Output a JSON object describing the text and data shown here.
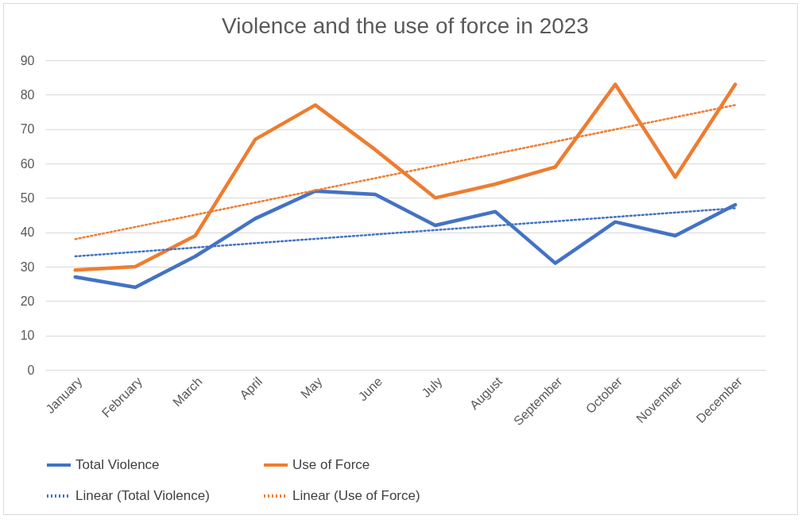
{
  "chart_data": {
    "type": "line",
    "title": "Violence and the use of force in 2023",
    "categories": [
      "January",
      "February",
      "March",
      "April",
      "May",
      "June",
      "July",
      "August",
      "September",
      "October",
      "November",
      "December"
    ],
    "series": [
      {
        "name": "Total Violence",
        "color": "#4472c4",
        "line_style": "solid",
        "values": [
          27,
          24,
          33,
          44,
          52,
          51,
          42,
          46,
          31,
          43,
          39,
          48
        ]
      },
      {
        "name": "Use of Force",
        "color": "#ed7d31",
        "line_style": "solid",
        "values": [
          29,
          30,
          39,
          67,
          77,
          64,
          50,
          54,
          59,
          83,
          56,
          83
        ]
      },
      {
        "name": "Linear (Total Violence)",
        "color": "#4472c4",
        "line_style": "dotted",
        "x": [
          "January",
          "December"
        ],
        "values": [
          33,
          47
        ]
      },
      {
        "name": "Linear (Use of Force)",
        "color": "#ed7d31",
        "line_style": "dotted",
        "x": [
          "January",
          "December"
        ],
        "values": [
          38,
          77
        ]
      }
    ],
    "ylim": [
      0,
      90
    ],
    "yticks": [
      0,
      10,
      20,
      30,
      40,
      50,
      60,
      70,
      80,
      90
    ],
    "grid": "y",
    "legend": "bottom",
    "marker": "none"
  }
}
